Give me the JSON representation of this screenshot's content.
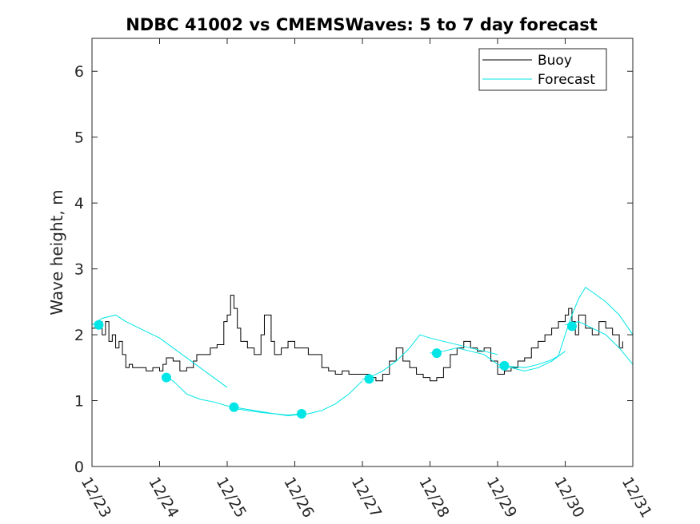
{
  "chart_data": {
    "type": "line",
    "title": "NDBC 41002 vs CMEMSWaves: 5 to 7 day forecast",
    "xlabel": "",
    "ylabel": "Wave height, m",
    "xlim": [
      0,
      8
    ],
    "ylim": [
      0,
      6.5
    ],
    "x_ticks": [
      0,
      1,
      2,
      3,
      4,
      5,
      6,
      7,
      8
    ],
    "x_tick_labels": [
      "12/23",
      "12/24",
      "12/25",
      "12/26",
      "12/27",
      "12/28",
      "12/29",
      "12/30",
      "12/31"
    ],
    "y_ticks": [
      0,
      1,
      2,
      3,
      4,
      5,
      6
    ],
    "y_tick_labels": [
      "0",
      "1",
      "2",
      "3",
      "4",
      "5",
      "6"
    ],
    "legend": {
      "position": "top-right",
      "entries": [
        "Buoy",
        "Forecast"
      ]
    },
    "colors": {
      "buoy": "#000000",
      "forecast": "#00e5e5"
    },
    "series": [
      {
        "name": "Buoy",
        "color": "#000000",
        "x": [
          0.0,
          0.1,
          0.15,
          0.2,
          0.25,
          0.3,
          0.35,
          0.4,
          0.45,
          0.5,
          0.55,
          0.6,
          0.7,
          0.8,
          0.9,
          1.0,
          1.05,
          1.1,
          1.2,
          1.3,
          1.4,
          1.5,
          1.55,
          1.65,
          1.75,
          1.85,
          1.95,
          2.0,
          2.05,
          2.1,
          2.15,
          2.2,
          2.3,
          2.4,
          2.5,
          2.55,
          2.65,
          2.7,
          2.8,
          2.9,
          3.0,
          3.1,
          3.2,
          3.3,
          3.4,
          3.5,
          3.6,
          3.7,
          3.8,
          3.9,
          4.0,
          4.1,
          4.2,
          4.3,
          4.4,
          4.5,
          4.6,
          4.7,
          4.8,
          4.9,
          5.0,
          5.1,
          5.2,
          5.3,
          5.4,
          5.5,
          5.6,
          5.7,
          5.8,
          5.9,
          6.0,
          6.1,
          6.2,
          6.3,
          6.4,
          6.5,
          6.6,
          6.7,
          6.8,
          6.9,
          7.0,
          7.05,
          7.1,
          7.15,
          7.2,
          7.3,
          7.4,
          7.5,
          7.6,
          7.7,
          7.8,
          7.85
        ],
        "values": [
          2.1,
          2.2,
          2.0,
          2.2,
          1.9,
          2.0,
          1.8,
          1.9,
          1.7,
          1.5,
          1.55,
          1.5,
          1.5,
          1.45,
          1.5,
          1.45,
          1.55,
          1.65,
          1.6,
          1.45,
          1.5,
          1.6,
          1.7,
          1.7,
          1.8,
          1.85,
          2.2,
          2.3,
          2.6,
          2.4,
          2.1,
          1.9,
          1.8,
          1.7,
          2.0,
          2.3,
          1.9,
          1.7,
          1.8,
          1.9,
          1.8,
          1.8,
          1.7,
          1.7,
          1.5,
          1.45,
          1.4,
          1.45,
          1.4,
          1.4,
          1.4,
          1.35,
          1.3,
          1.4,
          1.6,
          1.8,
          1.6,
          1.5,
          1.4,
          1.35,
          1.3,
          1.35,
          1.5,
          1.7,
          1.8,
          1.9,
          1.8,
          1.75,
          1.8,
          1.6,
          1.4,
          1.45,
          1.5,
          1.6,
          1.65,
          1.8,
          1.9,
          2.0,
          2.1,
          2.2,
          2.3,
          2.4,
          2.2,
          2.0,
          2.3,
          2.1,
          2.0,
          2.2,
          2.1,
          2.0,
          1.8,
          1.9
        ]
      },
      {
        "name": "Forecast",
        "color": "#00e5e5",
        "segments": [
          {
            "x": [
              0.0,
              0.15,
              0.35,
              0.5,
              0.7,
              1.0,
              1.2,
              1.4,
              1.6,
              1.8,
              2.0
            ],
            "values": [
              2.15,
              2.25,
              2.3,
              2.2,
              2.1,
              1.95,
              1.8,
              1.65,
              1.5,
              1.35,
              1.2
            ]
          },
          {
            "x": [
              1.1,
              1.2,
              1.3,
              1.4,
              1.6,
              1.8,
              2.0,
              2.1
            ],
            "values": [
              1.35,
              1.3,
              1.2,
              1.1,
              1.02,
              0.98,
              0.92,
              0.9
            ]
          },
          {
            "x": [
              2.1,
              2.3,
              2.5,
              2.7,
              2.9,
              3.1
            ],
            "values": [
              0.88,
              0.85,
              0.82,
              0.8,
              0.78,
              0.8
            ]
          },
          {
            "x": [
              2.1,
              2.4,
              2.7,
              2.9,
              3.0,
              3.2,
              3.4,
              3.6,
              3.8,
              4.0
            ],
            "values": [
              0.9,
              0.85,
              0.8,
              0.77,
              0.78,
              0.8,
              0.85,
              0.95,
              1.1,
              1.3
            ]
          },
          {
            "x": [
              4.0,
              4.1,
              4.3,
              4.5,
              4.7,
              4.85,
              5.0,
              5.2,
              5.4,
              5.6,
              5.8,
              6.0
            ],
            "values": [
              1.32,
              1.35,
              1.45,
              1.6,
              1.8,
              2.0,
              1.95,
              1.9,
              1.85,
              1.8,
              1.75,
              1.7
            ]
          },
          {
            "x": [
              5.0,
              5.2,
              5.4,
              5.6,
              5.8,
              6.0,
              6.2,
              6.4,
              6.6,
              6.8,
              7.0
            ],
            "values": [
              1.72,
              1.75,
              1.8,
              1.75,
              1.7,
              1.55,
              1.5,
              1.45,
              1.5,
              1.6,
              1.75
            ]
          },
          {
            "x": [
              6.0,
              6.2,
              6.4,
              6.6,
              6.8,
              6.9,
              7.0,
              7.1,
              7.2,
              7.3,
              7.4,
              7.6,
              7.8,
              8.0
            ],
            "values": [
              1.5,
              1.52,
              1.5,
              1.55,
              1.62,
              1.68,
              2.0,
              2.3,
              2.55,
              2.72,
              2.65,
              2.5,
              2.3,
              2.0
            ]
          },
          {
            "x": [
              7.0,
              7.2,
              7.4,
              7.6,
              7.8,
              8.0
            ],
            "values": [
              2.15,
              2.2,
              2.1,
              2.0,
              1.8,
              1.55
            ]
          }
        ],
        "markers": {
          "x": [
            0.1,
            1.1,
            2.1,
            3.1,
            4.1,
            5.1,
            6.1,
            7.1
          ],
          "values": [
            2.15,
            1.35,
            0.9,
            0.8,
            1.33,
            1.72,
            1.53,
            2.13
          ]
        }
      }
    ]
  }
}
